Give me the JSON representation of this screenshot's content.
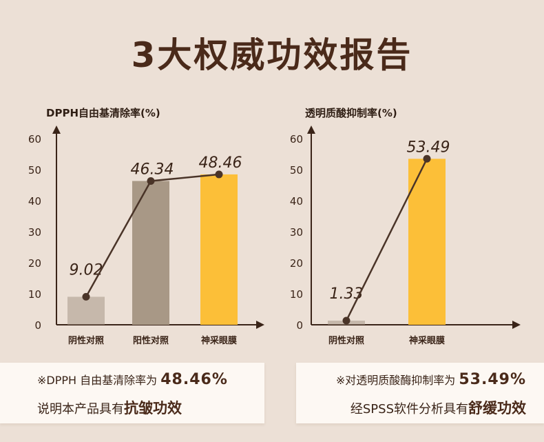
{
  "title": "3大权威功效报告",
  "colors": {
    "control": "#a89888",
    "positive": "#a89886",
    "product": "#fcbf38",
    "line": "#4a3428",
    "axis": "#3a2418"
  },
  "chart_data": [
    {
      "type": "bar",
      "ylabel": "DPPH自由基清除率(%)",
      "categories": [
        "阴性对照",
        "阳性对照",
        "神采眼膜"
      ],
      "values": [
        9.02,
        46.34,
        48.46
      ],
      "value_labels": [
        "9.02",
        "46.34",
        "48.46"
      ],
      "yticks": [
        0,
        10,
        20,
        30,
        40,
        50,
        60
      ],
      "ylim": [
        0,
        60
      ],
      "overlay_line": true,
      "grid": false
    },
    {
      "type": "bar",
      "ylabel": "透明质酸抑制率(%)",
      "categories": [
        "阴性对照",
        "神采眼膜"
      ],
      "values": [
        1.33,
        53.49
      ],
      "value_labels": [
        "1.33",
        "53.49"
      ],
      "yticks": [
        0,
        10,
        20,
        30,
        40,
        50,
        60
      ],
      "ylim": [
        0,
        60
      ],
      "overlay_line": true,
      "grid": false
    }
  ],
  "notes": {
    "left": {
      "line1_prefix": "※DPPH 自由基清除率为",
      "line1_value": "48.46%",
      "line2_prefix": "说明本产品具有",
      "line2_strong": "抗皱功效"
    },
    "right": {
      "line1_prefix": "※对透明质酸酶抑制率为",
      "line1_value": "53.49%",
      "line2_prefix": "经SPSS软件分析具有",
      "line2_strong": "舒缓功效"
    }
  }
}
